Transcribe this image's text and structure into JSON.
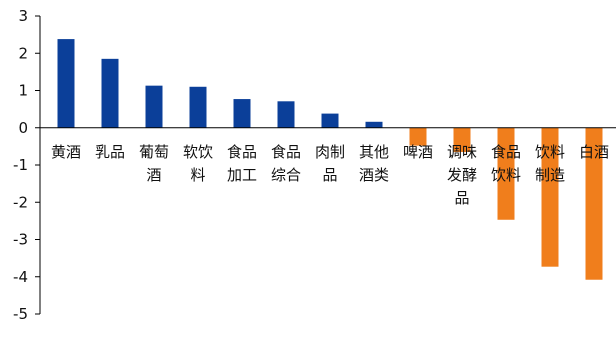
{
  "chart_data": {
    "type": "bar",
    "title": "",
    "xlabel": "",
    "ylabel": "",
    "ylim": [
      -5,
      3
    ],
    "yticks": [
      3,
      2,
      1,
      0,
      -1,
      -2,
      -3,
      -4,
      -5
    ],
    "categories": [
      "黄酒",
      "乳品",
      "葡萄酒",
      "软饮料",
      "食品加工",
      "食品综合",
      "肉制品",
      "其他酒类",
      "啤酒",
      "调味发酵品",
      "食品饮料",
      "饮料制造",
      "白酒"
    ],
    "category_lines": [
      [
        "黄酒"
      ],
      [
        "乳品"
      ],
      [
        "葡萄",
        "酒"
      ],
      [
        "软饮",
        "料"
      ],
      [
        "食品",
        "加工"
      ],
      [
        "食品",
        "综合"
      ],
      [
        "肉制",
        "品"
      ],
      [
        "其他",
        "酒类"
      ],
      [
        "啤酒"
      ],
      [
        "调味",
        "发酵",
        "品"
      ],
      [
        "食品",
        "饮料"
      ],
      [
        "饮料",
        "制造"
      ],
      [
        "白酒"
      ]
    ],
    "values": [
      2.38,
      1.85,
      1.13,
      1.1,
      0.77,
      0.71,
      0.38,
      0.16,
      -0.48,
      -0.65,
      -2.47,
      -3.73,
      -4.08
    ],
    "colors": {
      "positive": "#0b3f99",
      "negative": "#f07e1c"
    },
    "grid": false,
    "legend": "none"
  }
}
